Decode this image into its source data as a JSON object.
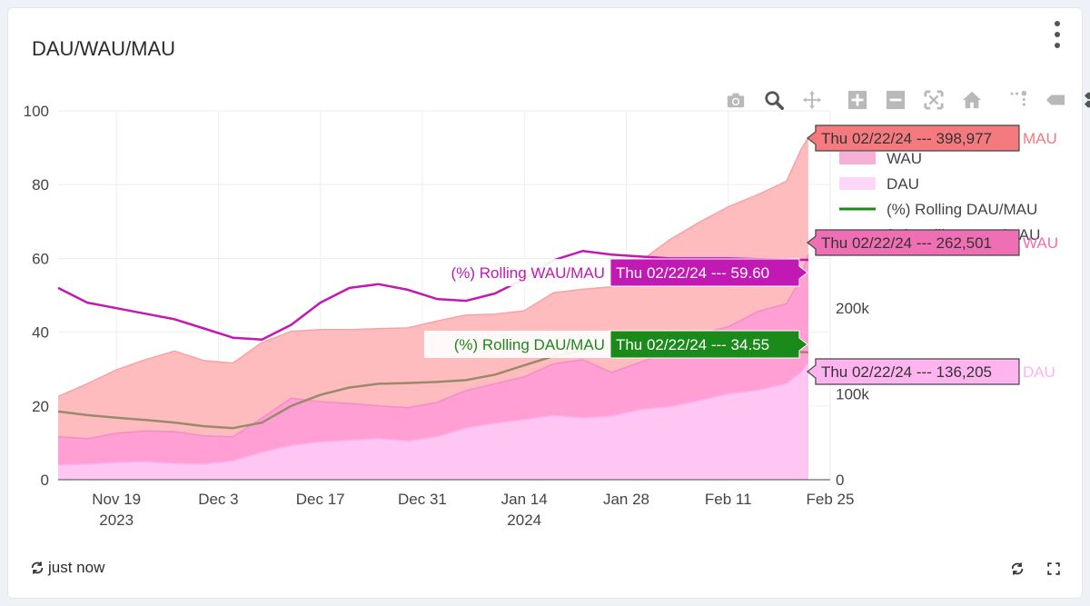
{
  "panel": {
    "title": "DAU/WAU/MAU",
    "refresh_label": "just now",
    "menu_icon": "kebab-menu-icon"
  },
  "modebar": [
    {
      "name": "camera-icon"
    },
    {
      "name": "zoom-icon"
    },
    {
      "name": "pan-icon"
    },
    {
      "name": "zoom-in-icon"
    },
    {
      "name": "zoom-out-icon"
    },
    {
      "name": "autoscale-icon"
    },
    {
      "name": "reset-axes-icon"
    },
    {
      "name": "spike-lines-icon"
    },
    {
      "name": "hover-closest-icon"
    },
    {
      "name": "hover-compare-icon"
    }
  ],
  "chart_data": {
    "type": "area",
    "x_axis": {
      "type": "date",
      "range": [
        "2023-11-11",
        "2024-02-25"
      ],
      "tick_labels": [
        {
          "date": "2023-11-19",
          "line1": "Nov 19",
          "line2": "2023"
        },
        {
          "date": "2023-12-03",
          "line1": "Dec 3",
          "line2": ""
        },
        {
          "date": "2023-12-17",
          "line1": "Dec 17",
          "line2": ""
        },
        {
          "date": "2023-12-31",
          "line1": "Dec 31",
          "line2": ""
        },
        {
          "date": "2024-01-14",
          "line1": "Jan 14",
          "line2": "2024"
        },
        {
          "date": "2024-01-28",
          "line1": "Jan 28",
          "line2": ""
        },
        {
          "date": "2024-02-11",
          "line1": "Feb 11",
          "line2": ""
        },
        {
          "date": "2024-02-25",
          "line1": "Feb 25",
          "line2": ""
        }
      ]
    },
    "y_left": {
      "range": [
        0,
        100
      ],
      "ticks": [
        "0",
        "20",
        "40",
        "60",
        "80",
        "100"
      ]
    },
    "y_right": {
      "range": [
        0,
        430000
      ],
      "ticks": [
        {
          "value": 0,
          "label": "0"
        },
        {
          "value": 100000,
          "label": "100k"
        },
        {
          "value": 200000,
          "label": "200k"
        }
      ]
    },
    "grid": true,
    "legend": {
      "placement": "right",
      "entries": [
        {
          "name": "MAU",
          "color": "#f47a7f"
        },
        {
          "name": "WAU",
          "color": "#ee6fb3"
        },
        {
          "name": "DAU",
          "color": "#ffb4f0"
        },
        {
          "name": "(%) Rolling DAU/MAU",
          "color": "#1a8a1a"
        },
        {
          "name": "(%) Rolling WAU/MAU",
          "color": "#c218b4"
        }
      ]
    },
    "series": [
      {
        "name": "MAU",
        "axis": "right",
        "kind": "area",
        "fill": "#ffbcbe",
        "line": "#f7a3a6",
        "x": [
          "2023-11-11",
          "2023-11-15",
          "2023-11-19",
          "2023-11-23",
          "2023-11-27",
          "2023-12-01",
          "2023-12-05",
          "2023-12-09",
          "2023-12-13",
          "2023-12-17",
          "2023-12-21",
          "2023-12-25",
          "2023-12-29",
          "2024-01-02",
          "2024-01-06",
          "2024-01-10",
          "2024-01-14",
          "2024-01-18",
          "2024-01-22",
          "2024-01-26",
          "2024-01-30",
          "2024-02-03",
          "2024-02-07",
          "2024-02-11",
          "2024-02-15",
          "2024-02-19",
          "2024-02-21",
          "2024-02-22"
        ],
        "values": [
          97000,
          112000,
          128000,
          140000,
          150000,
          139000,
          136000,
          160000,
          173000,
          175000,
          175000,
          176000,
          177000,
          185000,
          192000,
          193000,
          197000,
          218000,
          222000,
          225000,
          255000,
          280000,
          300000,
          318000,
          332000,
          348000,
          385000,
          398977
        ]
      },
      {
        "name": "WAU",
        "axis": "right",
        "kind": "area",
        "fill": "#ff9fd3",
        "line": "#f48cc8",
        "x": [
          "2023-11-11",
          "2023-11-15",
          "2023-11-19",
          "2023-11-23",
          "2023-11-27",
          "2023-12-01",
          "2023-12-05",
          "2023-12-09",
          "2023-12-13",
          "2023-12-17",
          "2023-12-21",
          "2023-12-25",
          "2023-12-29",
          "2024-01-02",
          "2024-01-06",
          "2024-01-10",
          "2024-01-14",
          "2024-01-18",
          "2024-01-22",
          "2024-01-26",
          "2024-01-30",
          "2024-02-03",
          "2024-02-07",
          "2024-02-11",
          "2024-02-15",
          "2024-02-19",
          "2024-02-21",
          "2024-02-22"
        ],
        "values": [
          50000,
          48000,
          54000,
          57000,
          56000,
          51000,
          50000,
          72000,
          95000,
          91000,
          89000,
          86000,
          84000,
          90000,
          104000,
          112000,
          120000,
          135000,
          140000,
          125000,
          137000,
          150000,
          170000,
          178000,
          196000,
          205000,
          235000,
          262501
        ]
      },
      {
        "name": "DAU",
        "axis": "right",
        "kind": "area",
        "fill": "#ffc6f4",
        "line": "#ffb0ee",
        "x": [
          "2023-11-11",
          "2023-11-15",
          "2023-11-19",
          "2023-11-23",
          "2023-11-27",
          "2023-12-01",
          "2023-12-05",
          "2023-12-09",
          "2023-12-13",
          "2023-12-17",
          "2023-12-21",
          "2023-12-25",
          "2023-12-29",
          "2024-01-02",
          "2024-01-06",
          "2024-01-10",
          "2024-01-14",
          "2024-01-18",
          "2024-01-22",
          "2024-01-26",
          "2024-01-30",
          "2024-02-03",
          "2024-02-07",
          "2024-02-11",
          "2024-02-15",
          "2024-02-19",
          "2024-02-21",
          "2024-02-22"
        ],
        "values": [
          17000,
          18000,
          20000,
          21000,
          19000,
          18000,
          22000,
          32000,
          40000,
          44000,
          46000,
          48000,
          45000,
          50000,
          60000,
          66000,
          70000,
          75000,
          72000,
          74000,
          82000,
          85000,
          92000,
          100000,
          104000,
          112000,
          125000,
          136205
        ]
      },
      {
        "name": "(%) Rolling DAU/MAU",
        "axis": "left",
        "kind": "line",
        "color": "#9a8a6a",
        "x": [
          "2023-11-11",
          "2023-11-15",
          "2023-11-19",
          "2023-11-23",
          "2023-11-27",
          "2023-12-01",
          "2023-12-05",
          "2023-12-09",
          "2023-12-13",
          "2023-12-17",
          "2023-12-21",
          "2023-12-25",
          "2023-12-29",
          "2024-01-02",
          "2024-01-06",
          "2024-01-10",
          "2024-01-14",
          "2024-01-18",
          "2024-01-22",
          "2024-01-26",
          "2024-01-30",
          "2024-02-03",
          "2024-02-07",
          "2024-02-11",
          "2024-02-15",
          "2024-02-19",
          "2024-02-21",
          "2024-02-22"
        ],
        "values": [
          18.5,
          17.5,
          16.8,
          16.2,
          15.5,
          14.5,
          14.0,
          15.5,
          20.0,
          23.0,
          25.0,
          26.0,
          26.2,
          26.5,
          27.0,
          28.5,
          31.0,
          33.5,
          35.0,
          35.5,
          36.0,
          36.2,
          36.0,
          35.5,
          35.0,
          35.0,
          34.6,
          34.55
        ]
      },
      {
        "name": "(%) Rolling WAU/MAU",
        "axis": "left",
        "kind": "line",
        "color": "#c218b4",
        "x": [
          "2023-11-11",
          "2023-11-15",
          "2023-11-19",
          "2023-11-23",
          "2023-11-27",
          "2023-12-01",
          "2023-12-05",
          "2023-12-09",
          "2023-12-13",
          "2023-12-17",
          "2023-12-21",
          "2023-12-25",
          "2023-12-29",
          "2024-01-02",
          "2024-01-06",
          "2024-01-10",
          "2024-01-14",
          "2024-01-18",
          "2024-01-22",
          "2024-01-26",
          "2024-01-30",
          "2024-02-03",
          "2024-02-07",
          "2024-02-11",
          "2024-02-15",
          "2024-02-19",
          "2024-02-21",
          "2024-02-22"
        ],
        "values": [
          52.0,
          48.0,
          46.5,
          45.0,
          43.5,
          41.0,
          38.5,
          38.0,
          42.0,
          48.0,
          52.0,
          53.0,
          51.5,
          49.0,
          48.5,
          50.5,
          54.5,
          59.5,
          62.0,
          61.0,
          60.5,
          60.0,
          60.0,
          60.0,
          59.8,
          59.7,
          59.6,
          59.6
        ]
      }
    ],
    "hover_labels": [
      {
        "text": "Thu 02/22/24 --- 398,977",
        "series_label": "MAU",
        "fill": "#f47a7f",
        "text_color": "#333333",
        "series_color": "#f47a7f"
      },
      {
        "text": "Thu 02/22/24 --- 262,501",
        "series_label": "WAU",
        "fill": "#ee6fb3",
        "text_color": "#333333",
        "series_color": "#ee6fb3"
      },
      {
        "text": "Thu 02/22/24 --- 136,205",
        "series_label": "DAU",
        "fill": "#ffb4f0",
        "text_color": "#333333",
        "series_color": "#ffb4f0"
      },
      {
        "text": "Thu 02/22/24 --- 59.60",
        "series_label": "(%) Rolling WAU/MAU",
        "fill": "#c218b4",
        "text_color": "#ffffff",
        "series_color": "#c218b4"
      },
      {
        "text": "Thu 02/22/24 --- 34.55",
        "series_label": "(%) Rolling DAU/MAU",
        "fill": "#1a8a1a",
        "text_color": "#ffffff",
        "series_color": "#1a8a1a"
      }
    ]
  }
}
